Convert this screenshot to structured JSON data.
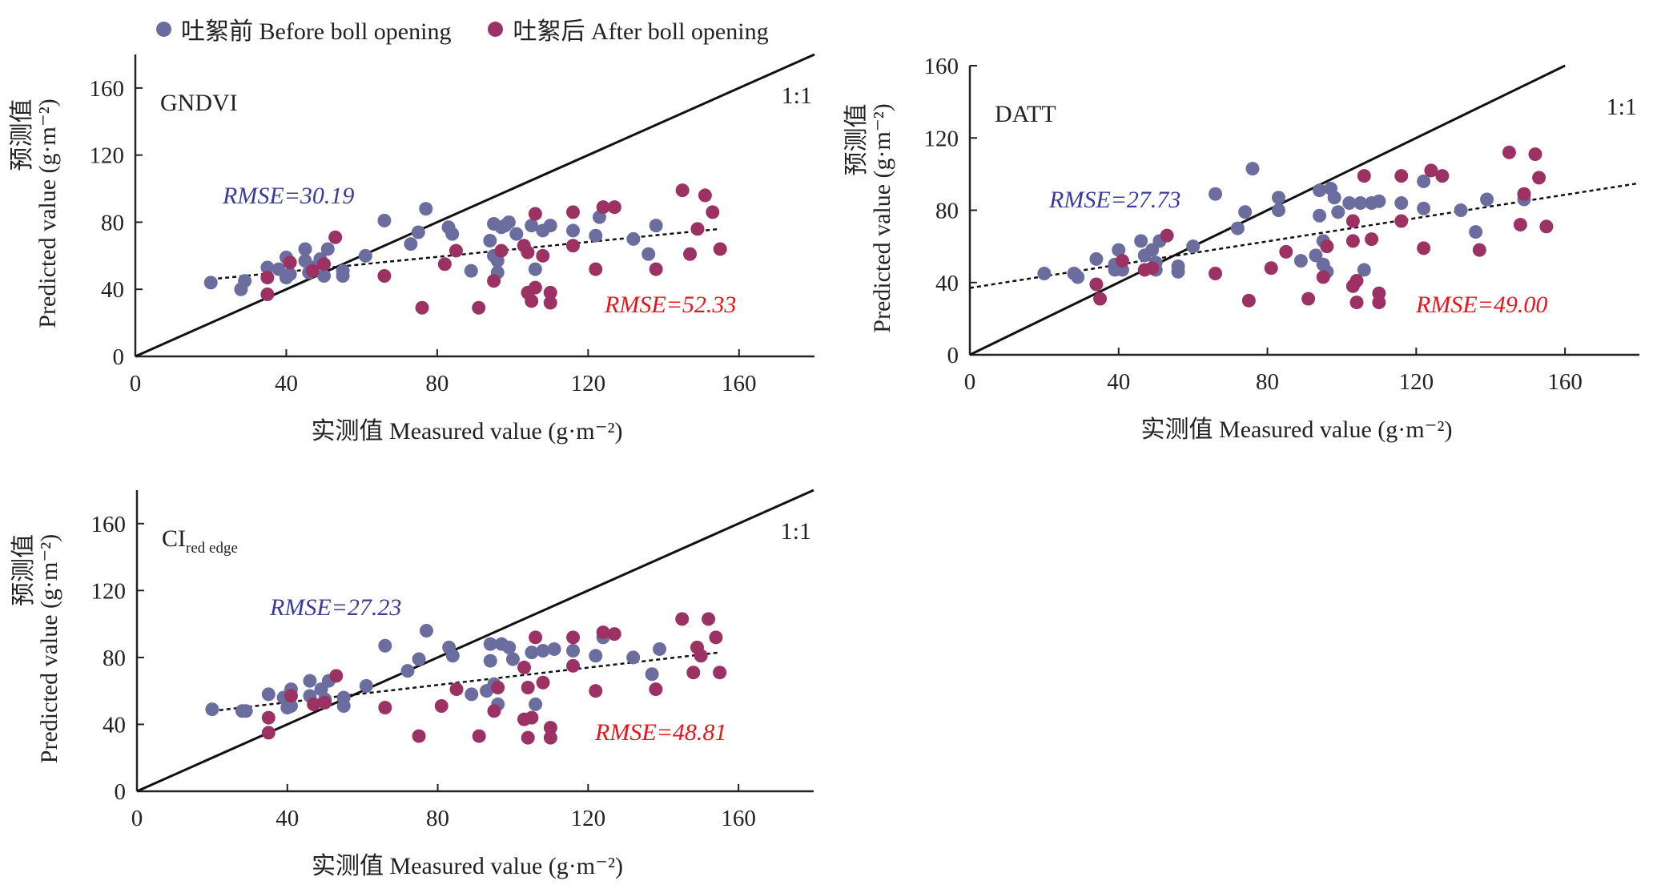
{
  "legend": [
    {
      "label": "吐絮前 Before boll opening",
      "color": "#6a6d9e"
    },
    {
      "label": "吐絮后 After boll opening",
      "color": "#9b3263"
    }
  ],
  "colors": {
    "before": "#6a6d9e",
    "after": "#9b3263",
    "rmse_before": "#3a3a9a",
    "rmse_after": "#e8141c"
  },
  "chart_data": [
    {
      "type": "scatter",
      "title": "GNDVI",
      "title_sub": "",
      "xlabel": "实测值 Measured value (g·m⁻²)",
      "ylabel_cn": "预测值",
      "ylabel": "Predicted value (g·m⁻²)",
      "xlim": [
        0,
        180
      ],
      "ylim": [
        0,
        180
      ],
      "xticks": [
        "0",
        "40",
        "80",
        "120",
        "160"
      ],
      "yticks": [
        "0",
        "40",
        "80",
        "120",
        "160"
      ],
      "one_to_one_label": "1:1",
      "rmse_before": "RMSE=30.19",
      "rmse_after": "RMSE=52.33",
      "fit_line": {
        "x": [
          20,
          155
        ],
        "y": [
          46,
          76
        ]
      },
      "series": [
        {
          "name": "吐絮前 Before boll opening",
          "points": [
            [
              20,
              44
            ],
            [
              28,
              40
            ],
            [
              29,
              45
            ],
            [
              35,
              53
            ],
            [
              38,
              52
            ],
            [
              40,
              59
            ],
            [
              40,
              47
            ],
            [
              41,
              49
            ],
            [
              45,
              64
            ],
            [
              45,
              57
            ],
            [
              46,
              50
            ],
            [
              47,
              53
            ],
            [
              49,
              58
            ],
            [
              50,
              48
            ],
            [
              51,
              64
            ],
            [
              55,
              51
            ],
            [
              55,
              48
            ],
            [
              61,
              60
            ],
            [
              66,
              81
            ],
            [
              73,
              67
            ],
            [
              75,
              74
            ],
            [
              77,
              88
            ],
            [
              83,
              77
            ],
            [
              84,
              73
            ],
            [
              89,
              51
            ],
            [
              94,
              69
            ],
            [
              95,
              79
            ],
            [
              95,
              60
            ],
            [
              96,
              57
            ],
            [
              96,
              50
            ],
            [
              97,
              77
            ],
            [
              98,
              78
            ],
            [
              99,
              80
            ],
            [
              101,
              73
            ],
            [
              105,
              78
            ],
            [
              106,
              52
            ],
            [
              108,
              75
            ],
            [
              110,
              78
            ],
            [
              116,
              75
            ],
            [
              122,
              72
            ],
            [
              123,
              83
            ],
            [
              132,
              70
            ],
            [
              136,
              61
            ],
            [
              138,
              78
            ]
          ]
        },
        {
          "name": "吐絮后 After boll opening",
          "points": [
            [
              35,
              37
            ],
            [
              35,
              47
            ],
            [
              41,
              56
            ],
            [
              47,
              51
            ],
            [
              50,
              55
            ],
            [
              53,
              71
            ],
            [
              66,
              48
            ],
            [
              76,
              29
            ],
            [
              82,
              55
            ],
            [
              85,
              63
            ],
            [
              91,
              29
            ],
            [
              95,
              45
            ],
            [
              97,
              63
            ],
            [
              103,
              66
            ],
            [
              104,
              38
            ],
            [
              104,
              62
            ],
            [
              105,
              33
            ],
            [
              106,
              41
            ],
            [
              106,
              85
            ],
            [
              108,
              60
            ],
            [
              110,
              38
            ],
            [
              110,
              32
            ],
            [
              116,
              66
            ],
            [
              116,
              86
            ],
            [
              122,
              52
            ],
            [
              124,
              89
            ],
            [
              127,
              89
            ],
            [
              138,
              52
            ],
            [
              145,
              99
            ],
            [
              147,
              61
            ],
            [
              149,
              76
            ],
            [
              151,
              96
            ],
            [
              153,
              86
            ],
            [
              155,
              64
            ]
          ]
        }
      ]
    },
    {
      "type": "scatter",
      "title": "DATT",
      "title_sub": "",
      "xlabel": "实测值 Measured value (g·m⁻²)",
      "ylabel_cn": "预测值",
      "ylabel": "Predicted value (g·m⁻²)",
      "xlim": [
        0,
        180
      ],
      "ylim": [
        0,
        160
      ],
      "xticks": [
        "0",
        "40",
        "80",
        "120",
        "160"
      ],
      "yticks": [
        "0",
        "40",
        "80",
        "120",
        "160"
      ],
      "one_to_one_label": "1:1",
      "rmse_before": "RMSE=27.73",
      "rmse_after": "RMSE=49.00",
      "fit_line": {
        "x": [
          0,
          180
        ],
        "y": [
          37,
          95
        ]
      },
      "series": [
        {
          "name": "吐絮前 Before boll opening",
          "points": [
            [
              20,
              45
            ],
            [
              28,
              45
            ],
            [
              29,
              43
            ],
            [
              34,
              53
            ],
            [
              39,
              50
            ],
            [
              39,
              47
            ],
            [
              40,
              58
            ],
            [
              41,
              47
            ],
            [
              46,
              63
            ],
            [
              47,
              55
            ],
            [
              49,
              58
            ],
            [
              50,
              51
            ],
            [
              50,
              47
            ],
            [
              51,
              63
            ],
            [
              56,
              49
            ],
            [
              56,
              46
            ],
            [
              60,
              60
            ],
            [
              66,
              89
            ],
            [
              72,
              70
            ],
            [
              74,
              79
            ],
            [
              76,
              103
            ],
            [
              83,
              87
            ],
            [
              83,
              80
            ],
            [
              89,
              52
            ],
            [
              93,
              55
            ],
            [
              94,
              77
            ],
            [
              94,
              91
            ],
            [
              95,
              63
            ],
            [
              95,
              50
            ],
            [
              96,
              46
            ],
            [
              97,
              92
            ],
            [
              98,
              87
            ],
            [
              99,
              79
            ],
            [
              102,
              84
            ],
            [
              105,
              84
            ],
            [
              106,
              47
            ],
            [
              108,
              84
            ],
            [
              110,
              85
            ],
            [
              116,
              84
            ],
            [
              122,
              96
            ],
            [
              122,
              81
            ],
            [
              132,
              80
            ],
            [
              136,
              68
            ],
            [
              139,
              86
            ],
            [
              149,
              86
            ]
          ]
        },
        {
          "name": "吐絮后 After boll opening",
          "points": [
            [
              34,
              39
            ],
            [
              35,
              31
            ],
            [
              41,
              52
            ],
            [
              47,
              47
            ],
            [
              49,
              48
            ],
            [
              53,
              66
            ],
            [
              66,
              45
            ],
            [
              75,
              30
            ],
            [
              81,
              48
            ],
            [
              85,
              57
            ],
            [
              91,
              31
            ],
            [
              95,
              43
            ],
            [
              96,
              60
            ],
            [
              103,
              74
            ],
            [
              103,
              38
            ],
            [
              103,
              63
            ],
            [
              104,
              41
            ],
            [
              104,
              29
            ],
            [
              106,
              99
            ],
            [
              108,
              64
            ],
            [
              110,
              34
            ],
            [
              110,
              29
            ],
            [
              116,
              74
            ],
            [
              116,
              99
            ],
            [
              122,
              59
            ],
            [
              124,
              102
            ],
            [
              127,
              99
            ],
            [
              137,
              58
            ],
            [
              145,
              112
            ],
            [
              148,
              72
            ],
            [
              149,
              89
            ],
            [
              152,
              111
            ],
            [
              153,
              98
            ],
            [
              155,
              71
            ]
          ]
        }
      ]
    },
    {
      "type": "scatter",
      "title": "CI",
      "title_sub": "red edge",
      "xlabel": "实测值 Measured value (g·m⁻²)",
      "ylabel_cn": "预测值",
      "ylabel": "Predicted value (g·m⁻²)",
      "xlim": [
        0,
        180
      ],
      "ylim": [
        0,
        180
      ],
      "xticks": [
        "0",
        "40",
        "80",
        "120",
        "160"
      ],
      "yticks": [
        "0",
        "40",
        "80",
        "120",
        "160"
      ],
      "one_to_one_label": "1:1",
      "rmse_before": "RMSE=27.23",
      "rmse_after": "RMSE=48.81",
      "fit_line": {
        "x": [
          20,
          155
        ],
        "y": [
          48,
          83
        ]
      },
      "series": [
        {
          "name": "吐絮前 Before boll opening",
          "points": [
            [
              20,
              49
            ],
            [
              28,
              48
            ],
            [
              29,
              48
            ],
            [
              35,
              58
            ],
            [
              39,
              56
            ],
            [
              40,
              50
            ],
            [
              41,
              61
            ],
            [
              41,
              51
            ],
            [
              46,
              66
            ],
            [
              46,
              57
            ],
            [
              47,
              52
            ],
            [
              49,
              61
            ],
            [
              50,
              55
            ],
            [
              51,
              66
            ],
            [
              55,
              56
            ],
            [
              55,
              51
            ],
            [
              61,
              63
            ],
            [
              66,
              87
            ],
            [
              72,
              72
            ],
            [
              75,
              79
            ],
            [
              77,
              96
            ],
            [
              83,
              86
            ],
            [
              84,
              81
            ],
            [
              89,
              58
            ],
            [
              93,
              60
            ],
            [
              94,
              78
            ],
            [
              94,
              88
            ],
            [
              95,
              64
            ],
            [
              96,
              52
            ],
            [
              97,
              88
            ],
            [
              99,
              86
            ],
            [
              100,
              79
            ],
            [
              105,
              83
            ],
            [
              106,
              52
            ],
            [
              108,
              84
            ],
            [
              111,
              85
            ],
            [
              116,
              84
            ],
            [
              122,
              81
            ],
            [
              124,
              92
            ],
            [
              132,
              80
            ],
            [
              137,
              70
            ],
            [
              139,
              85
            ]
          ]
        },
        {
          "name": "吐絮后 After boll opening",
          "points": [
            [
              35,
              44
            ],
            [
              35,
              35
            ],
            [
              41,
              57
            ],
            [
              47,
              52
            ],
            [
              50,
              53
            ],
            [
              53,
              69
            ],
            [
              66,
              50
            ],
            [
              75,
              33
            ],
            [
              81,
              51
            ],
            [
              85,
              61
            ],
            [
              91,
              33
            ],
            [
              95,
              48
            ],
            [
              96,
              62
            ],
            [
              103,
              74
            ],
            [
              103,
              43
            ],
            [
              104,
              62
            ],
            [
              104,
              32
            ],
            [
              105,
              44
            ],
            [
              106,
              92
            ],
            [
              108,
              65
            ],
            [
              110,
              38
            ],
            [
              110,
              32
            ],
            [
              116,
              75
            ],
            [
              116,
              92
            ],
            [
              122,
              60
            ],
            [
              124,
              95
            ],
            [
              127,
              94
            ],
            [
              138,
              61
            ],
            [
              145,
              103
            ],
            [
              148,
              71
            ],
            [
              149,
              86
            ],
            [
              150,
              81
            ],
            [
              152,
              103
            ],
            [
              154,
              92
            ],
            [
              155,
              71
            ]
          ]
        }
      ]
    }
  ]
}
